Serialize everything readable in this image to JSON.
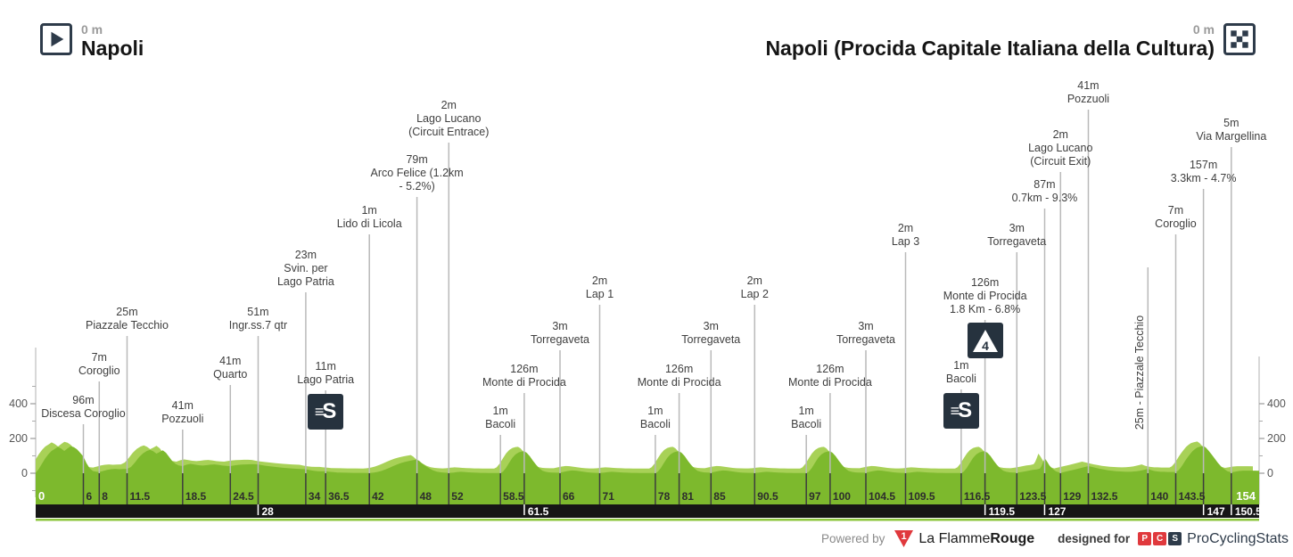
{
  "header": {
    "start": {
      "elevation": "0 m",
      "name": "Napoli"
    },
    "finish": {
      "elevation": "0 m",
      "name": "Napoli (Procida Capitale Italiana della Cultura)"
    }
  },
  "footer": {
    "powered_by": "Powered by",
    "lfr_badge": "1",
    "lfr_name_regular": "La Flamme",
    "lfr_name_bold": "Rouge",
    "designed_for": "designed for",
    "pcs_letters": [
      "P",
      "C",
      "S"
    ],
    "pcs_name": "ProCyclingStats"
  },
  "colors": {
    "profile_green": "#7DB92D",
    "profile_light_green": "#A8D157",
    "bottom_bar_black": "#161616",
    "bottom_line_green": "#8CC63E",
    "navy": "#2E3B4A",
    "red": "#E0393D",
    "marker_line_gray": "#B9B9B9",
    "marker_line_dark": "#3D3D3D",
    "axis_gray": "#C4C4C4"
  },
  "chart_data": {
    "type": "area",
    "x_unit": "km",
    "y_unit": "m",
    "xlim": [
      0,
      154
    ],
    "y_axis_ticks": [
      0,
      200,
      400
    ],
    "y_axis_minor_ticks": [
      100,
      300,
      500
    ],
    "x_axis_ticks_green": [
      0,
      6,
      8,
      11.5,
      18.5,
      24.5,
      34,
      36.5,
      42,
      48,
      52,
      58.5,
      66,
      71,
      78,
      81,
      85,
      90.5,
      97,
      100,
      104.5,
      109.5,
      116.5,
      123.5,
      129,
      132.5,
      140,
      143.5,
      154
    ],
    "x_axis_ticks_black": [
      28,
      61.5,
      119.5,
      127,
      147,
      150.5
    ],
    "markers": [
      {
        "km": 6,
        "lines": [
          "96m",
          "Discesa Coroglio"
        ],
        "lb": 476
      },
      {
        "km": 8,
        "lines": [
          "7m",
          "Coroglio"
        ],
        "lb": 428
      },
      {
        "km": 11.5,
        "lines": [
          "25m",
          "Piazzale Tecchio"
        ],
        "lb": 377
      },
      {
        "km": 18.5,
        "lines": [
          "41m",
          "Pozzuoli"
        ],
        "lb": 482
      },
      {
        "km": 24.5,
        "lines": [
          "41m",
          "Quarto"
        ],
        "lb": 432
      },
      {
        "km": 28,
        "lines": [
          "51m",
          "Ingr.ss.7 qtr"
        ],
        "lb": 377
      },
      {
        "km": 34,
        "lines": [
          "23m",
          "Svin. per",
          "Lago Patria"
        ],
        "lb": 328
      },
      {
        "km": 36.5,
        "lines": [
          "11m",
          "Lago Patria"
        ],
        "lb": 438,
        "icon": "sprint"
      },
      {
        "km": 42,
        "lines": [
          "1m",
          "Lido di Licola"
        ],
        "lb": 263
      },
      {
        "km": 48,
        "lines": [
          "79m",
          "Arco Felice (1.2km",
          "- 5.2%)"
        ],
        "lb": 221
      },
      {
        "km": 52,
        "lines": [
          "2m",
          "Lago Lucano",
          "(Circuit Entrace)"
        ],
        "lb": 160
      },
      {
        "km": 58.5,
        "lines": [
          "1m",
          "Bacoli"
        ],
        "lb": 488
      },
      {
        "km": 61.5,
        "lines": [
          "126m",
          "Monte di Procida"
        ],
        "lb": 441
      },
      {
        "km": 66,
        "lines": [
          "3m",
          "Torregaveta"
        ],
        "lb": 393
      },
      {
        "km": 71,
        "lines": [
          "2m",
          "Lap 1"
        ],
        "lb": 342
      },
      {
        "km": 78,
        "lines": [
          "1m",
          "Bacoli"
        ],
        "lb": 488
      },
      {
        "km": 81,
        "lines": [
          "126m",
          "Monte di Procida"
        ],
        "lb": 441
      },
      {
        "km": 85,
        "lines": [
          "3m",
          "Torregaveta"
        ],
        "lb": 393
      },
      {
        "km": 90.5,
        "lines": [
          "2m",
          "Lap 2"
        ],
        "lb": 342
      },
      {
        "km": 97,
        "lines": [
          "1m",
          "Bacoli"
        ],
        "lb": 488
      },
      {
        "km": 100,
        "lines": [
          "126m",
          "Monte di Procida"
        ],
        "lb": 441
      },
      {
        "km": 104.5,
        "lines": [
          "3m",
          "Torregaveta"
        ],
        "lb": 393
      },
      {
        "km": 109.5,
        "lines": [
          "2m",
          "Lap 3"
        ],
        "lb": 283
      },
      {
        "km": 116.5,
        "lines": [
          "1m",
          "Bacoli"
        ],
        "lb": 437,
        "icon": "sprint"
      },
      {
        "km": 119.5,
        "lines": [
          "126m",
          "Monte di Procida",
          "1.8 Km - 6.8%"
        ],
        "lb": 359,
        "icon": "climb4"
      },
      {
        "km": 123.5,
        "lines": [
          "3m",
          "Torregaveta"
        ],
        "lb": 283
      },
      {
        "km": 127,
        "lines": [
          "87m",
          "0.7km - 9.3%"
        ],
        "lb": 234
      },
      {
        "km": 129,
        "lines": [
          "2m",
          "Lago Lucano",
          "(Circuit Exit)"
        ],
        "lb": 193
      },
      {
        "km": 132.5,
        "lines": [
          "41m",
          "Pozzuoli"
        ],
        "lb": 123
      },
      {
        "km": 140,
        "lines": [
          "25m - Piazzale Tecchio"
        ],
        "lb": 300,
        "rotated": true
      },
      {
        "km": 143.5,
        "lines": [
          "7m",
          "Coroglio"
        ],
        "lb": 263
      },
      {
        "km": 147,
        "lines": [
          "157m",
          "3.3km - 4.7%"
        ],
        "lb": 212
      },
      {
        "km": 150.5,
        "lines": [
          "5m",
          "Via Margellina"
        ],
        "lb": 165
      }
    ],
    "profile": [
      [
        0,
        2
      ],
      [
        0.4,
        25
      ],
      [
        0.8,
        55
      ],
      [
        1.2,
        85
      ],
      [
        1.6,
        110
      ],
      [
        2,
        128
      ],
      [
        2.4,
        140
      ],
      [
        2.8,
        152
      ],
      [
        3.2,
        142
      ],
      [
        3.6,
        128
      ],
      [
        4,
        142
      ],
      [
        4.4,
        155
      ],
      [
        4.8,
        150
      ],
      [
        5.2,
        138
      ],
      [
        5.6,
        118
      ],
      [
        6,
        96
      ],
      [
        6.4,
        58
      ],
      [
        6.8,
        28
      ],
      [
        7.2,
        13
      ],
      [
        7.6,
        9
      ],
      [
        8,
        7
      ],
      [
        8.5,
        13
      ],
      [
        9,
        19
      ],
      [
        9.5,
        23
      ],
      [
        10,
        25
      ],
      [
        10.5,
        23
      ],
      [
        11,
        24
      ],
      [
        11.5,
        25
      ],
      [
        12,
        36
      ],
      [
        12.5,
        62
      ],
      [
        13,
        92
      ],
      [
        13.5,
        114
      ],
      [
        14,
        128
      ],
      [
        14.4,
        135
      ],
      [
        14.8,
        126
      ],
      [
        15.2,
        113
      ],
      [
        15.6,
        122
      ],
      [
        16,
        132
      ],
      [
        16.4,
        118
      ],
      [
        16.8,
        94
      ],
      [
        17.2,
        70
      ],
      [
        17.6,
        54
      ],
      [
        18,
        45
      ],
      [
        18.5,
        41
      ],
      [
        19,
        49
      ],
      [
        19.5,
        54
      ],
      [
        20,
        50
      ],
      [
        20.5,
        46
      ],
      [
        21,
        44
      ],
      [
        21.5,
        46
      ],
      [
        22,
        49
      ],
      [
        22.5,
        51
      ],
      [
        23,
        48
      ],
      [
        23.5,
        44
      ],
      [
        24,
        42
      ],
      [
        24.5,
        41
      ],
      [
        25,
        45
      ],
      [
        25.5,
        48
      ],
      [
        26,
        50
      ],
      [
        26.5,
        51
      ],
      [
        27,
        52
      ],
      [
        27.5,
        52
      ],
      [
        28,
        51
      ],
      [
        28.5,
        46
      ],
      [
        29,
        42
      ],
      [
        30,
        37
      ],
      [
        31,
        32
      ],
      [
        32,
        28
      ],
      [
        33,
        25
      ],
      [
        34,
        23
      ],
      [
        34.5,
        18
      ],
      [
        35,
        14
      ],
      [
        35.5,
        12
      ],
      [
        36,
        11
      ],
      [
        36.5,
        11
      ],
      [
        37,
        8
      ],
      [
        37.5,
        6
      ],
      [
        38,
        4
      ],
      [
        39,
        3
      ],
      [
        40,
        2
      ],
      [
        41,
        2
      ],
      [
        42,
        1
      ],
      [
        42.5,
        3
      ],
      [
        43,
        7
      ],
      [
        43.5,
        13
      ],
      [
        44,
        21
      ],
      [
        44.5,
        31
      ],
      [
        45,
        41
      ],
      [
        45.5,
        51
      ],
      [
        46,
        59
      ],
      [
        46.5,
        65
      ],
      [
        47,
        71
      ],
      [
        47.5,
        75
      ],
      [
        48,
        79
      ],
      [
        48.3,
        71
      ],
      [
        48.6,
        58
      ],
      [
        49,
        44
      ],
      [
        49.5,
        29
      ],
      [
        50,
        17
      ],
      [
        50.5,
        9
      ],
      [
        51,
        5
      ],
      [
        51.5,
        3
      ],
      [
        52,
        2
      ],
      [
        52.5,
        3
      ],
      [
        53,
        6
      ],
      [
        53.5,
        8
      ],
      [
        54,
        7
      ],
      [
        54.5,
        5
      ],
      [
        55,
        4
      ],
      [
        55.5,
        3
      ],
      [
        56,
        2
      ],
      [
        56.5,
        2
      ],
      [
        57,
        1
      ],
      [
        58,
        1
      ],
      [
        58.5,
        1
      ],
      [
        58.8,
        8
      ],
      [
        59.2,
        30
      ],
      [
        59.6,
        60
      ],
      [
        60,
        88
      ],
      [
        60.4,
        108
      ],
      [
        60.8,
        120
      ],
      [
        61.2,
        125
      ],
      [
        61.5,
        126
      ],
      [
        61.8,
        118
      ],
      [
        62.2,
        98
      ],
      [
        62.6,
        72
      ],
      [
        63,
        48
      ],
      [
        63.4,
        28
      ],
      [
        63.8,
        14
      ],
      [
        64.2,
        8
      ],
      [
        64.6,
        5
      ],
      [
        65,
        4
      ],
      [
        65.5,
        3
      ],
      [
        66,
        3
      ],
      [
        66.5,
        8
      ],
      [
        67,
        13
      ],
      [
        67.5,
        16
      ],
      [
        68,
        15
      ],
      [
        68.5,
        12
      ],
      [
        69,
        8
      ],
      [
        69.5,
        5
      ],
      [
        70,
        3
      ],
      [
        70.5,
        2
      ],
      [
        71,
        2
      ],
      [
        71.5,
        3
      ],
      [
        72,
        6
      ],
      [
        72.5,
        8
      ],
      [
        73,
        7
      ],
      [
        73.5,
        5
      ],
      [
        74,
        4
      ],
      [
        74.5,
        3
      ],
      [
        75,
        2
      ],
      [
        75.5,
        2
      ],
      [
        76,
        1
      ],
      [
        77,
        1
      ],
      [
        78,
        1
      ],
      [
        78.3,
        8
      ],
      [
        78.7,
        30
      ],
      [
        79.1,
        60
      ],
      [
        79.5,
        88
      ],
      [
        79.9,
        108
      ],
      [
        80.3,
        120
      ],
      [
        80.7,
        125
      ],
      [
        81,
        126
      ],
      [
        81.3,
        118
      ],
      [
        81.7,
        98
      ],
      [
        82.1,
        72
      ],
      [
        82.5,
        48
      ],
      [
        82.9,
        28
      ],
      [
        83.3,
        14
      ],
      [
        83.7,
        8
      ],
      [
        84.1,
        5
      ],
      [
        84.5,
        4
      ],
      [
        85,
        3
      ],
      [
        85.5,
        8
      ],
      [
        86,
        13
      ],
      [
        86.5,
        16
      ],
      [
        87,
        15
      ],
      [
        87.5,
        12
      ],
      [
        88,
        8
      ],
      [
        88.5,
        5
      ],
      [
        89,
        3
      ],
      [
        90,
        2
      ],
      [
        90.5,
        2
      ],
      [
        91,
        3
      ],
      [
        91.5,
        6
      ],
      [
        92,
        8
      ],
      [
        92.5,
        7
      ],
      [
        93,
        5
      ],
      [
        93.5,
        4
      ],
      [
        94,
        3
      ],
      [
        94.5,
        2
      ],
      [
        95,
        2
      ],
      [
        95.5,
        1
      ],
      [
        96.5,
        1
      ],
      [
        97,
        1
      ],
      [
        97.3,
        8
      ],
      [
        97.7,
        30
      ],
      [
        98.1,
        60
      ],
      [
        98.5,
        88
      ],
      [
        98.9,
        108
      ],
      [
        99.3,
        120
      ],
      [
        99.7,
        125
      ],
      [
        100,
        126
      ],
      [
        100.3,
        118
      ],
      [
        100.7,
        98
      ],
      [
        101.1,
        72
      ],
      [
        101.5,
        48
      ],
      [
        101.9,
        28
      ],
      [
        102.3,
        14
      ],
      [
        102.7,
        8
      ],
      [
        103.1,
        5
      ],
      [
        103.5,
        4
      ],
      [
        104.5,
        3
      ],
      [
        105,
        8
      ],
      [
        105.5,
        13
      ],
      [
        106,
        16
      ],
      [
        106.5,
        15
      ],
      [
        107,
        12
      ],
      [
        107.5,
        8
      ],
      [
        108,
        5
      ],
      [
        108.5,
        3
      ],
      [
        109,
        2
      ],
      [
        109.5,
        2
      ],
      [
        110,
        3
      ],
      [
        110.5,
        6
      ],
      [
        111,
        8
      ],
      [
        111.5,
        7
      ],
      [
        112,
        5
      ],
      [
        112.5,
        4
      ],
      [
        113,
        3
      ],
      [
        113.5,
        2
      ],
      [
        114,
        2
      ],
      [
        114.5,
        1
      ],
      [
        115.5,
        1
      ],
      [
        116.5,
        1
      ],
      [
        116.8,
        8
      ],
      [
        117.2,
        30
      ],
      [
        117.6,
        60
      ],
      [
        118,
        88
      ],
      [
        118.4,
        108
      ],
      [
        118.8,
        120
      ],
      [
        119.2,
        125
      ],
      [
        119.5,
        126
      ],
      [
        119.8,
        118
      ],
      [
        120.2,
        98
      ],
      [
        120.6,
        72
      ],
      [
        121,
        48
      ],
      [
        121.4,
        28
      ],
      [
        121.8,
        14
      ],
      [
        122.2,
        8
      ],
      [
        122.6,
        5
      ],
      [
        123,
        4
      ],
      [
        123.5,
        3
      ],
      [
        124,
        6
      ],
      [
        124.5,
        10
      ],
      [
        125,
        15
      ],
      [
        125.5,
        19
      ],
      [
        126,
        22
      ],
      [
        126.4,
        26
      ],
      [
        126.6,
        40
      ],
      [
        126.8,
        62
      ],
      [
        127,
        87
      ],
      [
        127.3,
        68
      ],
      [
        127.6,
        45
      ],
      [
        128,
        25
      ],
      [
        128.4,
        12
      ],
      [
        128.7,
        6
      ],
      [
        129,
        2
      ],
      [
        129.4,
        6
      ],
      [
        129.8,
        11
      ],
      [
        130.3,
        16
      ],
      [
        130.8,
        21
      ],
      [
        131.3,
        27
      ],
      [
        131.8,
        33
      ],
      [
        132.5,
        41
      ],
      [
        133,
        36
      ],
      [
        133.5,
        30
      ],
      [
        134,
        25
      ],
      [
        134.5,
        21
      ],
      [
        135,
        17
      ],
      [
        135.5,
        14
      ],
      [
        136,
        12
      ],
      [
        136.5,
        10
      ],
      [
        137,
        9
      ],
      [
        137.5,
        8
      ],
      [
        138,
        9
      ],
      [
        138.5,
        11
      ],
      [
        139,
        14
      ],
      [
        139.5,
        19
      ],
      [
        140,
        25
      ],
      [
        140.4,
        18
      ],
      [
        140.8,
        13
      ],
      [
        141.2,
        10
      ],
      [
        141.6,
        8
      ],
      [
        142,
        8
      ],
      [
        142.5,
        7
      ],
      [
        143,
        7
      ],
      [
        143.5,
        7
      ],
      [
        143.8,
        14
      ],
      [
        144.1,
        30
      ],
      [
        144.4,
        50
      ],
      [
        144.7,
        72
      ],
      [
        145,
        92
      ],
      [
        145.3,
        110
      ],
      [
        145.6,
        126
      ],
      [
        145.9,
        138
      ],
      [
        146.2,
        147
      ],
      [
        146.5,
        152
      ],
      [
        147,
        157
      ],
      [
        147.3,
        147
      ],
      [
        147.6,
        132
      ],
      [
        148,
        110
      ],
      [
        148.4,
        85
      ],
      [
        148.8,
        60
      ],
      [
        149.2,
        40
      ],
      [
        149.6,
        24
      ],
      [
        150,
        12
      ],
      [
        150.5,
        5
      ],
      [
        151,
        9
      ],
      [
        151.5,
        13
      ],
      [
        152,
        15
      ],
      [
        152.5,
        15
      ],
      [
        153,
        15
      ],
      [
        153.5,
        15
      ],
      [
        154,
        14
      ]
    ]
  }
}
